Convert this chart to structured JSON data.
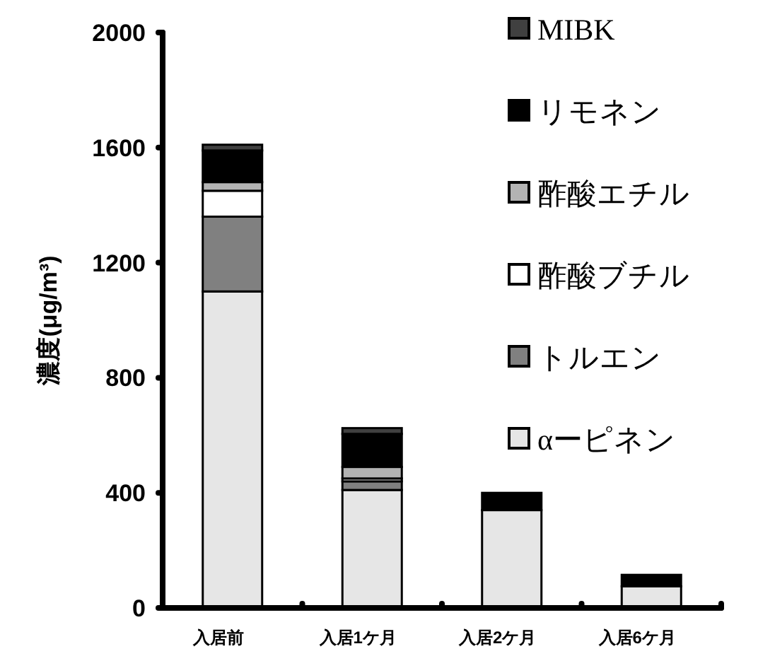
{
  "chart_data": {
    "type": "bar",
    "stacked": true,
    "ylabel": "濃度(μg/m³)",
    "categories": [
      "入居前",
      "入居1ケ月",
      "入居2ケ月",
      "入居6ケ月"
    ],
    "ylim": [
      0,
      2000
    ],
    "yticks": [
      0,
      400,
      800,
      1200,
      1600,
      2000
    ],
    "legend": "right",
    "grid": false,
    "series": [
      {
        "name": "αーピネン",
        "color": "#e6e6e6",
        "values": [
          1100,
          410,
          340,
          75
        ]
      },
      {
        "name": "トルエン",
        "color": "#808080",
        "values": [
          260,
          30,
          0,
          0
        ]
      },
      {
        "name": "酢酸ブチル",
        "color": "#ffffff",
        "values": [
          90,
          10,
          0,
          0
        ]
      },
      {
        "name": "酢酸エチル",
        "color": "#b3b3b3",
        "values": [
          30,
          40,
          0,
          0
        ]
      },
      {
        "name": "リモネン",
        "color": "#000000",
        "values": [
          110,
          115,
          60,
          40
        ]
      },
      {
        "name": "MIBK",
        "color": "#404040",
        "values": [
          20,
          20,
          0,
          0
        ]
      }
    ]
  }
}
